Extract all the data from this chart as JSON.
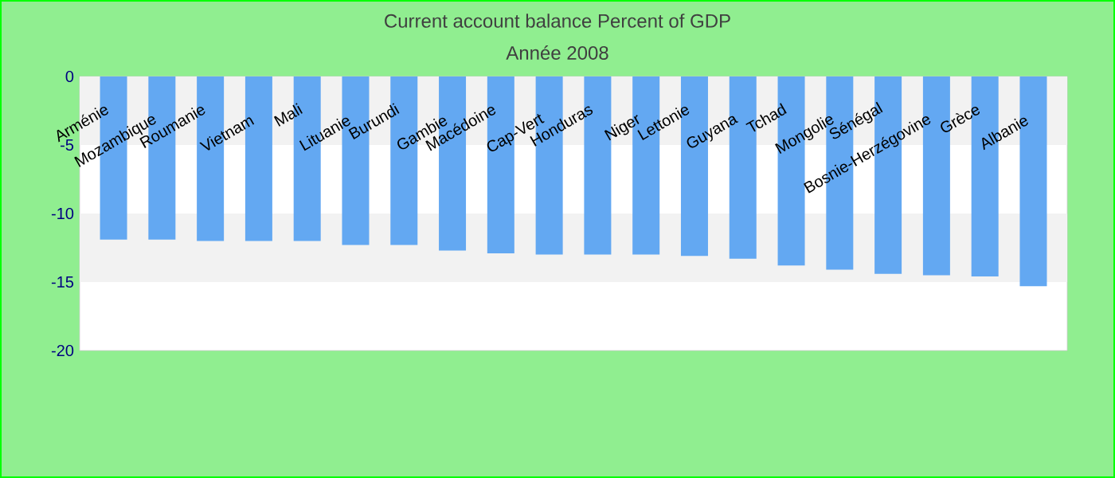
{
  "chart_data": {
    "type": "bar",
    "title": "Current account balance  Percent of GDP",
    "subtitle": "Année 2008",
    "categories": [
      "Arménie",
      "Mozambique",
      "Roumanie",
      "Vietnam",
      "Mali",
      "Lituanie",
      "Burundi",
      "Gambie",
      "Macédoine",
      "Cap-Vert",
      "Honduras",
      "Niger",
      "Lettonie",
      "Guyana",
      "Tchad",
      "Mongolie",
      "Sénégal",
      "Bosnie-Herzégovine",
      "Grèce",
      "Albanie"
    ],
    "values": [
      -11.9,
      -11.9,
      -12.0,
      -12.0,
      -12.0,
      -12.3,
      -12.3,
      -12.7,
      -12.9,
      -13.0,
      -13.0,
      -13.0,
      -13.1,
      -13.3,
      -13.8,
      -14.1,
      -14.4,
      -14.5,
      -14.6,
      -15.3
    ],
    "color": "#63a8f2",
    "ylim": [
      -20,
      0
    ],
    "yticks": [
      -20,
      -15,
      -10,
      -5,
      0
    ],
    "bands": [
      {
        "axis": "y",
        "from": -5,
        "to": 0,
        "color": "#f2f2f2"
      },
      {
        "axis": "y",
        "from": -15,
        "to": -10,
        "color": "#f2f2f2"
      }
    ]
  }
}
